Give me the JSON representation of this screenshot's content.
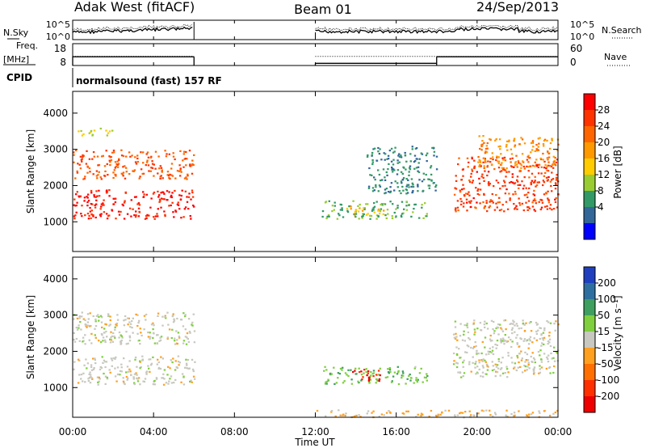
{
  "header": {
    "left": "Adak West (fitACF)",
    "center": "Beam 01",
    "right": "24/Sep/2013"
  },
  "params": {
    "nsky_label": "N.Sky",
    "nsearch_label": "N.Search",
    "freq_label": "Freq.",
    "freq_unit": "[MHz]",
    "nave_label": "Nave",
    "cpid_label": "CPID",
    "cpid_text": "normalsound (fast) 157 RF",
    "noise_ticks": [
      "10^5",
      "10^0"
    ],
    "noise_ticks_right": [
      "10^5",
      "10^0"
    ],
    "freq_ticks": [
      "18",
      "8"
    ],
    "nave_ticks": [
      "60",
      "0"
    ]
  },
  "axes": {
    "xlabel": "Time UT",
    "ylabel": "Slant Range [km]",
    "xticks": [
      "00:00",
      "04:00",
      "08:00",
      "12:00",
      "16:00",
      "20:00",
      "00:00"
    ],
    "yticks": [
      "4000",
      "3000",
      "2000",
      "1000"
    ]
  },
  "power_scale": {
    "label": "Power [dB]",
    "ticks": [
      "28",
      "24",
      "20",
      "16",
      "12",
      "8",
      "4"
    ],
    "colors": [
      "#ff0000",
      "#ff3300",
      "#ff6600",
      "#ff9900",
      "#ffcc00",
      "#99cc33",
      "#339966",
      "#336699",
      "#0000ff"
    ]
  },
  "velocity_scale": {
    "label": "Velocity [m s⁻¹]",
    "ticks": [
      "200",
      "100",
      "50",
      "15",
      "-15",
      "-50",
      "-100",
      "-200"
    ],
    "colors": [
      "#1f3fbf",
      "#2f6f9f",
      "#3f9f5f",
      "#7fcf3f",
      "#c8c8c0",
      "#ffa020",
      "#ff7000",
      "#ff3000",
      "#ee0000"
    ]
  },
  "chart_data": [
    {
      "type": "line",
      "title": "",
      "series": [
        {
          "name": "N.Sky"
        },
        {
          "name": "N.Search"
        }
      ],
      "xlim": [
        0,
        24
      ],
      "gap_hours": [
        6,
        12
      ]
    },
    {
      "type": "line",
      "series": [
        {
          "name": "Freq.",
          "unit": "MHz"
        },
        {
          "name": "Nave"
        }
      ],
      "freq_segments": [
        {
          "x": [
            0,
            6
          ],
          "value": 12
        },
        {
          "x": [
            12,
            18
          ],
          "value": 9
        },
        {
          "x": [
            18,
            24
          ],
          "value": 12
        }
      ],
      "nave_value": 25,
      "ylim_freq": [
        8,
        18
      ],
      "ylim_nave": [
        0,
        60
      ]
    },
    {
      "type": "heatmap",
      "quantity": "Power",
      "unit": "dB",
      "x": "hours UT",
      "xlim": [
        0,
        24
      ],
      "ylim": [
        180,
        4600
      ],
      "crange": [
        0,
        30
      ],
      "regions": [
        {
          "t0": 0.0,
          "t1": 6.0,
          "r0": 1100,
          "r1": 1900,
          "value": 29
        },
        {
          "t0": 0.0,
          "t1": 6.0,
          "r0": 2200,
          "r1": 3000,
          "value": 24
        },
        {
          "t0": 0.0,
          "t1": 2.0,
          "r0": 3400,
          "r1": 3600,
          "value": 14
        },
        {
          "t0": 12.3,
          "t1": 17.5,
          "r0": 1100,
          "r1": 1600,
          "value": 9
        },
        {
          "t0": 13.5,
          "t1": 15.5,
          "r0": 1200,
          "r1": 1450,
          "value": 16
        },
        {
          "t0": 14.5,
          "t1": 18.0,
          "r0": 1800,
          "r1": 3100,
          "value": 6
        },
        {
          "t0": 18.8,
          "t1": 24.0,
          "r0": 1300,
          "r1": 2800,
          "value": 26
        },
        {
          "t0": 20.0,
          "t1": 24.0,
          "r0": 2500,
          "r1": 3400,
          "value": 20
        }
      ]
    },
    {
      "type": "heatmap",
      "quantity": "Velocity",
      "unit": "m s-1",
      "x": "hours UT",
      "xlim": [
        0,
        24
      ],
      "ylim": [
        180,
        4600
      ],
      "crange": [
        -200,
        200
      ],
      "regions": [
        {
          "t0": 0.0,
          "t1": 6.0,
          "r0": 1100,
          "r1": 1900,
          "value": 0
        },
        {
          "t0": 0.0,
          "t1": 6.0,
          "r0": 2200,
          "r1": 3100,
          "value": 0
        },
        {
          "t0": 12.3,
          "t1": 17.5,
          "r0": 1100,
          "r1": 1600,
          "value": 60
        },
        {
          "t0": 13.8,
          "t1": 15.2,
          "r0": 1200,
          "r1": 1550,
          "value": -180
        },
        {
          "t0": 12.0,
          "t1": 24.0,
          "r0": 200,
          "r1": 400,
          "value": -30
        },
        {
          "t0": 18.8,
          "t1": 24.0,
          "r0": 1300,
          "r1": 2900,
          "value": 0
        }
      ]
    }
  ]
}
